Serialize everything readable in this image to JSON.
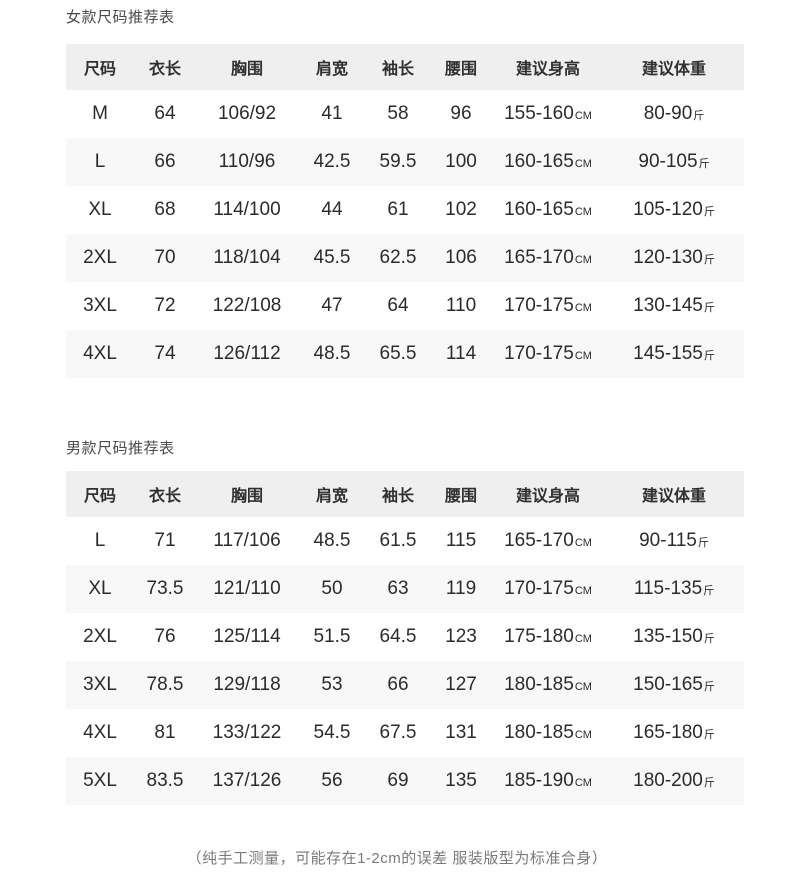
{
  "page_background": "#ffffff",
  "colors": {
    "header_bg": "#efefef",
    "stripe_bg": "#f8f8f8",
    "body_text": "#2b2b2b",
    "title_text": "#4b4b4b",
    "footnote_text": "#7a7a7a"
  },
  "column_keys": [
    "size",
    "length",
    "chest",
    "shoulder",
    "sleeve",
    "waist",
    "height",
    "weight"
  ],
  "units": {
    "height": "CM",
    "weight": "斤"
  },
  "tables": [
    {
      "title": "女款尺码推荐表",
      "headers": [
        "尺码",
        "衣长",
        "胸围",
        "肩宽",
        "袖长",
        "腰围",
        "建议身高",
        "建议体重"
      ],
      "rows": [
        {
          "size": "M",
          "length": "64",
          "chest": "106/92",
          "shoulder": "41",
          "sleeve": "58",
          "waist": "96",
          "height": "155-160",
          "weight": "80-90"
        },
        {
          "size": "L",
          "length": "66",
          "chest": "110/96",
          "shoulder": "42.5",
          "sleeve": "59.5",
          "waist": "100",
          "height": "160-165",
          "weight": "90-105"
        },
        {
          "size": "XL",
          "length": "68",
          "chest": "114/100",
          "shoulder": "44",
          "sleeve": "61",
          "waist": "102",
          "height": "160-165",
          "weight": "105-120"
        },
        {
          "size": "2XL",
          "length": "70",
          "chest": "118/104",
          "shoulder": "45.5",
          "sleeve": "62.5",
          "waist": "106",
          "height": "165-170",
          "weight": "120-130"
        },
        {
          "size": "3XL",
          "length": "72",
          "chest": "122/108",
          "shoulder": "47",
          "sleeve": "64",
          "waist": "110",
          "height": "170-175",
          "weight": "130-145"
        },
        {
          "size": "4XL",
          "length": "74",
          "chest": "126/112",
          "shoulder": "48.5",
          "sleeve": "65.5",
          "waist": "114",
          "height": "170-175",
          "weight": "145-155"
        }
      ]
    },
    {
      "title": "男款尺码推荐表",
      "headers": [
        "尺码",
        "衣长",
        "胸围",
        "肩宽",
        "袖长",
        "腰围",
        "建议身高",
        "建议体重"
      ],
      "rows": [
        {
          "size": "L",
          "length": "71",
          "chest": "117/106",
          "shoulder": "48.5",
          "sleeve": "61.5",
          "waist": "115",
          "height": "165-170",
          "weight": "90-115"
        },
        {
          "size": "XL",
          "length": "73.5",
          "chest": "121/110",
          "shoulder": "50",
          "sleeve": "63",
          "waist": "119",
          "height": "170-175",
          "weight": "115-135"
        },
        {
          "size": "2XL",
          "length": "76",
          "chest": "125/114",
          "shoulder": "51.5",
          "sleeve": "64.5",
          "waist": "123",
          "height": "175-180",
          "weight": "135-150"
        },
        {
          "size": "3XL",
          "length": "78.5",
          "chest": "129/118",
          "shoulder": "53",
          "sleeve": "66",
          "waist": "127",
          "height": "180-185",
          "weight": "150-165"
        },
        {
          "size": "4XL",
          "length": "81",
          "chest": "133/122",
          "shoulder": "54.5",
          "sleeve": "67.5",
          "waist": "131",
          "height": "180-185",
          "weight": "165-180"
        },
        {
          "size": "5XL",
          "length": "83.5",
          "chest": "137/126",
          "shoulder": "56",
          "sleeve": "69",
          "waist": "135",
          "height": "185-190",
          "weight": "180-200"
        }
      ]
    }
  ],
  "footnote": "（纯手工测量，可能存在1-2cm的误差 服装版型为标准合身）"
}
